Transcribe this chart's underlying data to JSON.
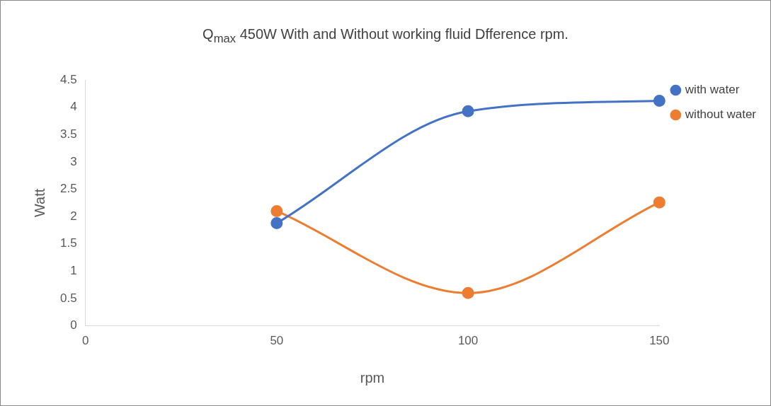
{
  "chart_data": {
    "type": "line",
    "title": "Q$_{max}$ 450W With and Without working fluid Dfference rpm.",
    "xlabel": "rpm",
    "ylabel": "Watt",
    "x": [
      50,
      100,
      150
    ],
    "series": [
      {
        "name": "with water",
        "color": "#4472c4",
        "values": [
          1.88,
          3.93,
          4.12
        ]
      },
      {
        "name": "without water",
        "color": "#ed7d31",
        "values": [
          2.1,
          0.6,
          2.26
        ]
      }
    ],
    "xlim": [
      0,
      150
    ],
    "xticks": [
      0,
      50,
      100,
      150
    ],
    "ylim": [
      0,
      4.5
    ],
    "yticks": [
      0,
      0.5,
      1,
      1.5,
      2,
      2.5,
      3,
      3.5,
      4,
      4.5
    ],
    "grid": false,
    "legend": "right",
    "marker": "circle",
    "line_style": "solid"
  }
}
